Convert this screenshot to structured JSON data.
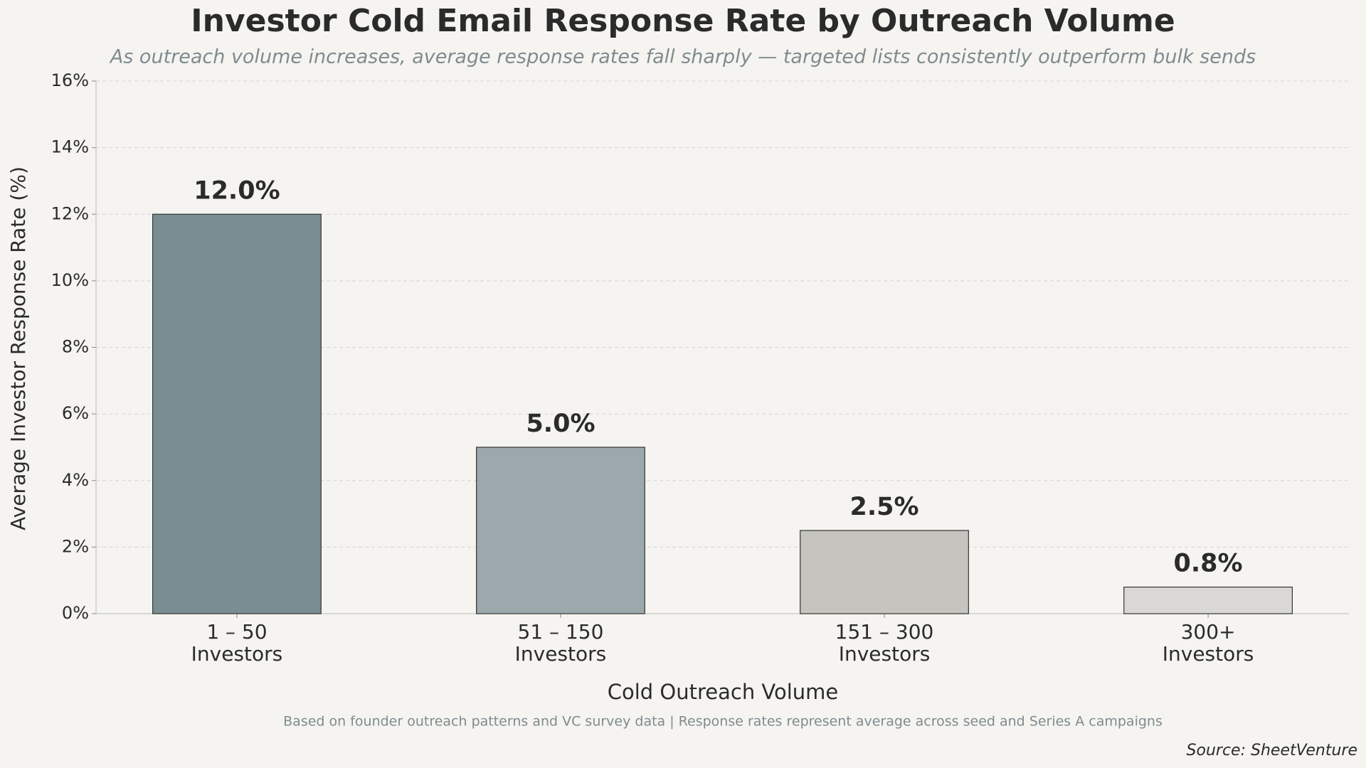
{
  "chart_data": {
    "type": "bar",
    "title": "Investor Cold Email Response Rate by Outreach Volume",
    "subtitle": "As outreach volume increases, average response rates fall sharply — targeted lists consistently outperform bulk sends",
    "x_label": "Cold Outreach Volume",
    "y_label": "Average Investor Response Rate (%)",
    "footnote": "Based on founder outreach patterns and VC survey data | Response rates represent average across seed and Series A campaigns",
    "source": "Source: SheetVenture",
    "categories": [
      "1 – 50\nInvestors",
      "51 – 150\nInvestors",
      "151 – 300\nInvestors",
      "300+\nInvestors"
    ],
    "values": [
      12.0,
      5.0,
      2.5,
      0.8
    ],
    "value_labels": [
      "12.0%",
      "5.0%",
      "2.5%",
      "0.8%"
    ],
    "colors": [
      "#7a8d93",
      "#9ca8ac",
      "#c5c4bf",
      "#d9d8d4"
    ],
    "ylim": [
      0,
      16
    ],
    "yticks": [
      {
        "value": 0,
        "label": "0%"
      },
      {
        "value": 2,
        "label": "2%"
      },
      {
        "value": 4,
        "label": "4%"
      },
      {
        "value": 6,
        "label": "6%"
      },
      {
        "value": 8,
        "label": "8%"
      },
      {
        "value": 10,
        "label": "10%"
      },
      {
        "value": 12,
        "label": "12%"
      },
      {
        "value": 14,
        "label": "14%"
      },
      {
        "value": 16,
        "label": "16%"
      }
    ],
    "grid": true
  }
}
